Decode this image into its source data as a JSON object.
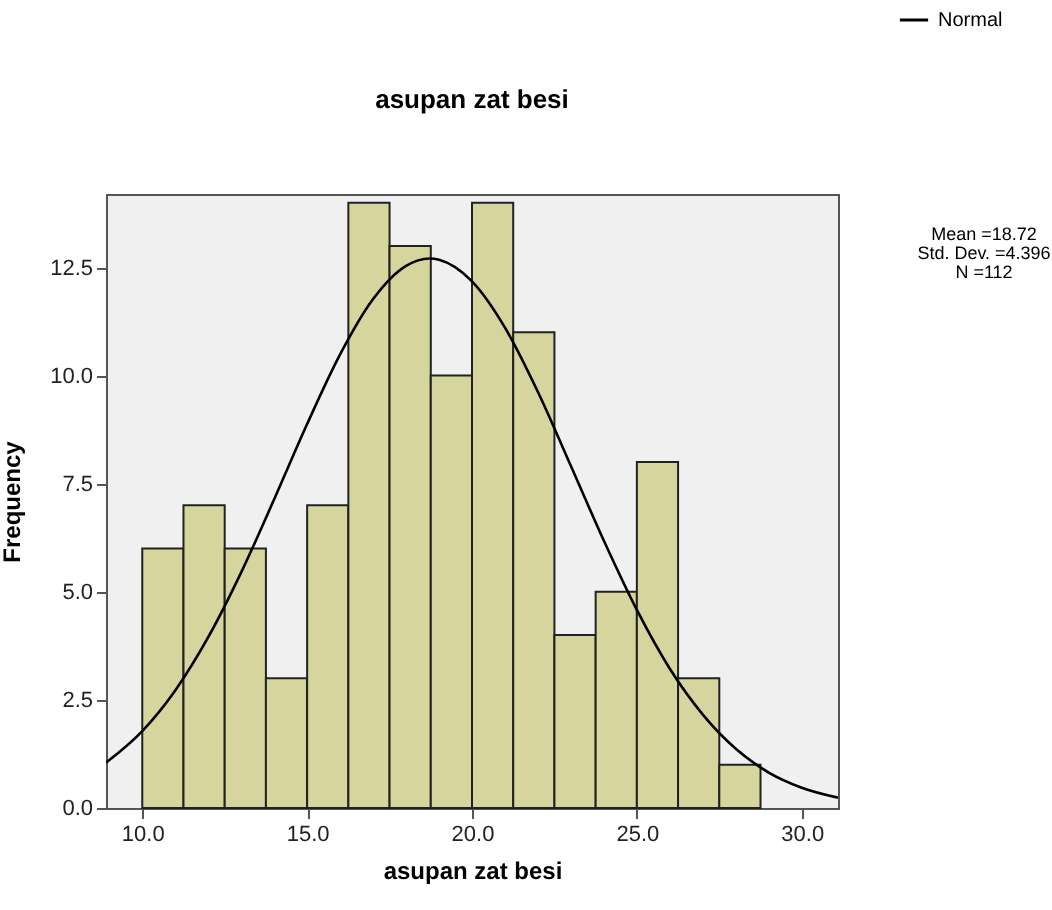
{
  "chart_data": {
    "type": "histogram",
    "title": "asupan zat besi",
    "xlabel": "asupan zat besi",
    "ylabel": "Frequency",
    "bins": [
      10,
      11.25,
      12.5,
      13.75,
      15,
      16.25,
      17.5,
      18.75,
      20,
      21.25,
      22.5,
      23.75,
      25,
      26.25,
      27.5,
      28.75
    ],
    "series": [
      {
        "color": "#d7d59e",
        "values": [
          6,
          7,
          6,
          3,
          7,
          14,
          13,
          10,
          14,
          11,
          4,
          5,
          8,
          3,
          1
        ]
      },
      {
        "type": "line",
        "name": "Normal",
        "color": "#000000",
        "x": [
          8.9,
          10,
          11,
          12,
          13,
          14,
          15,
          16,
          17,
          18,
          18.72,
          19,
          20,
          21,
          22,
          23,
          24,
          25,
          26,
          27,
          28,
          29,
          30,
          31.1
        ],
        "values": [
          1.05,
          1.78,
          2.72,
          3.95,
          5.45,
          7.14,
          8.88,
          10.49,
          11.77,
          12.54,
          12.71,
          12.68,
          12.18,
          11.11,
          9.62,
          7.91,
          6.18,
          4.58,
          3.22,
          2.16,
          1.37,
          0.82,
          0.47,
          0.24
        ]
      }
    ],
    "xlim": [
      8.9,
      31.1
    ],
    "ylim": [
      0,
      14.2
    ],
    "xticks": [
      {
        "value": 10,
        "label": "10.0"
      },
      {
        "value": 15,
        "label": "15.0"
      },
      {
        "value": 20,
        "label": "20.0"
      },
      {
        "value": 25,
        "label": "25.0"
      },
      {
        "value": 30,
        "label": "30.0"
      }
    ],
    "yticks": [
      {
        "value": 0,
        "label": "0.0"
      },
      {
        "value": 2.5,
        "label": "2.5"
      },
      {
        "value": 5,
        "label": "5.0"
      },
      {
        "value": 7.5,
        "label": "7.5"
      },
      {
        "value": 10,
        "label": "10.0"
      },
      {
        "value": 12.5,
        "label": "12.5"
      }
    ],
    "annotations": [
      "Mean =18.72",
      "Std. Dev. =4.396",
      "N =112"
    ],
    "legend": "top right"
  }
}
